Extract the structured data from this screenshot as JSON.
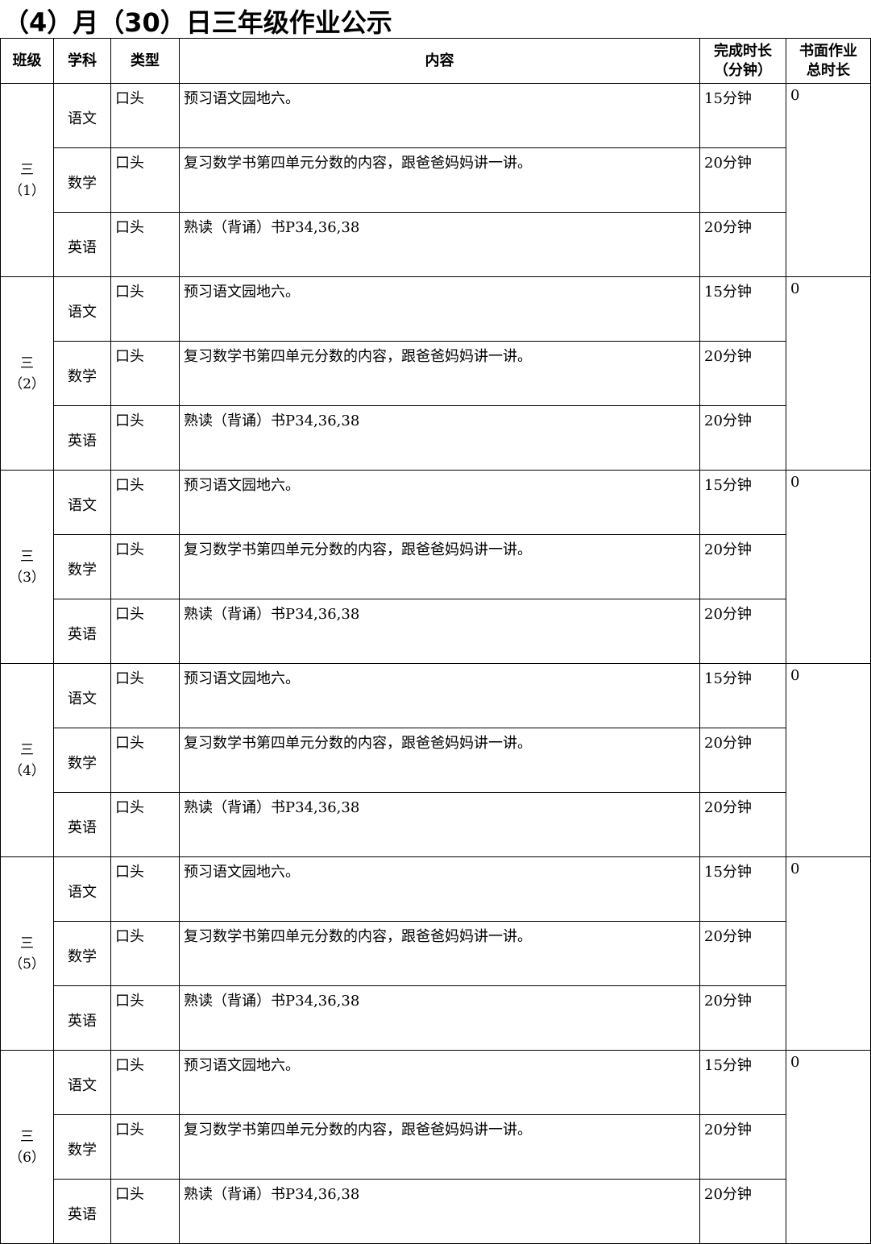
{
  "title": "（4）月（30）日三年级作业公示",
  "headers": {
    "class": "班级",
    "subject": "学科",
    "type": "类型",
    "content": "内容",
    "duration_line1": "完成时长",
    "duration_line2": "（分钟）",
    "total_line1": "书面作业",
    "total_line2": "总时长"
  },
  "classes": [
    {
      "grade": "三",
      "num": "（1）",
      "total": "0"
    },
    {
      "grade": "三",
      "num": "（2）",
      "total": "0"
    },
    {
      "grade": "三",
      "num": "（3）",
      "total": "0"
    },
    {
      "grade": "三",
      "num": "（4）",
      "total": "0"
    },
    {
      "grade": "三",
      "num": "（5）",
      "total": "0"
    },
    {
      "grade": "三",
      "num": "（6）",
      "total": "0"
    }
  ],
  "subjects": [
    {
      "subject": "语文",
      "type": "口头",
      "content": "预习语文园地六。",
      "duration": "15分钟"
    },
    {
      "subject": "数学",
      "type": "口头",
      "content": "复习数学书第四单元分数的内容，跟爸爸妈妈讲一讲。",
      "duration": "20分钟"
    },
    {
      "subject": "英语",
      "type": "口头",
      "content": "熟读（背诵）书P34,36,38",
      "duration": "20分钟"
    }
  ]
}
